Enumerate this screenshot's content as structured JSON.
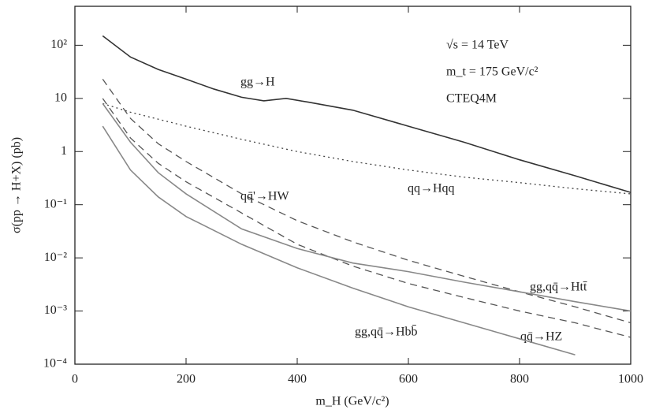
{
  "chart_data": {
    "type": "line",
    "xlabel": "m_H (GeV/c²)",
    "ylabel": "σ(pp → H+X)  (pb)",
    "annotations": [
      "√s = 14 TeV",
      "m_t = 175 GeV/c²",
      "CTEQ4M"
    ],
    "xlim": [
      0,
      1000
    ],
    "xticks": [
      0,
      200,
      400,
      600,
      800,
      1000
    ],
    "ylim": [
      0.0001,
      540
    ],
    "log_y": true,
    "yticks": [
      {
        "value": 0.0001,
        "label": "10⁻⁴"
      },
      {
        "value": 0.001,
        "label": "10⁻³"
      },
      {
        "value": 0.01,
        "label": "10⁻²"
      },
      {
        "value": 0.1,
        "label": "10⁻¹"
      },
      1,
      10,
      {
        "value": 100,
        "label": "10²"
      }
    ],
    "series": [
      {
        "name": "gg→H",
        "color": "#333333",
        "style": "solid",
        "x": [
          50,
          100,
          150,
          200,
          250,
          300,
          340,
          380,
          420,
          500,
          600,
          700,
          800,
          900,
          1000
        ],
        "values": [
          150,
          60,
          35,
          23,
          15,
          10.5,
          9,
          10,
          8.5,
          6,
          3,
          1.5,
          0.7,
          0.35,
          0.17
        ]
      },
      {
        "name": "qq→Hqq",
        "color": "#444444",
        "style": "dotted",
        "x": [
          50,
          100,
          200,
          300,
          400,
          500,
          600,
          700,
          800,
          900,
          1000
        ],
        "values": [
          8,
          5.5,
          3,
          1.7,
          1,
          0.65,
          0.45,
          0.33,
          0.26,
          0.2,
          0.16
        ]
      },
      {
        "name": "qq̄'→HW",
        "color": "#555555",
        "style": "dashed",
        "x": [
          50,
          100,
          150,
          200,
          300,
          400,
          500,
          600,
          700,
          800,
          900,
          1000
        ],
        "values": [
          23,
          4.2,
          1.4,
          0.65,
          0.16,
          0.05,
          0.02,
          0.009,
          0.0045,
          0.0023,
          0.0012,
          0.0006
        ]
      },
      {
        "name": "qq̄→HZ",
        "color": "#555555",
        "style": "dashed",
        "x": [
          50,
          100,
          150,
          200,
          300,
          400,
          500,
          600,
          700,
          800,
          900,
          1000
        ],
        "values": [
          10,
          1.8,
          0.6,
          0.27,
          0.07,
          0.018,
          0.007,
          0.0033,
          0.0018,
          0.001,
          0.0006,
          0.00032
        ]
      },
      {
        "name": "gg,qq̄→Htt̄",
        "color": "#888888",
        "style": "solid",
        "x": [
          50,
          100,
          150,
          200,
          300,
          400,
          500,
          600,
          700,
          800,
          900,
          1000
        ],
        "values": [
          8,
          1.5,
          0.4,
          0.16,
          0.035,
          0.015,
          0.008,
          0.0055,
          0.0035,
          0.0023,
          0.0015,
          0.001
        ]
      },
      {
        "name": "gg,qq̄→Hbb̄",
        "color": "#888888",
        "style": "solid",
        "x": [
          50,
          100,
          150,
          200,
          300,
          400,
          500,
          600,
          700,
          800,
          900
        ],
        "values": [
          3,
          0.45,
          0.14,
          0.06,
          0.018,
          0.0065,
          0.0027,
          0.0012,
          0.0006,
          0.0003,
          0.00015
        ]
      }
    ]
  }
}
